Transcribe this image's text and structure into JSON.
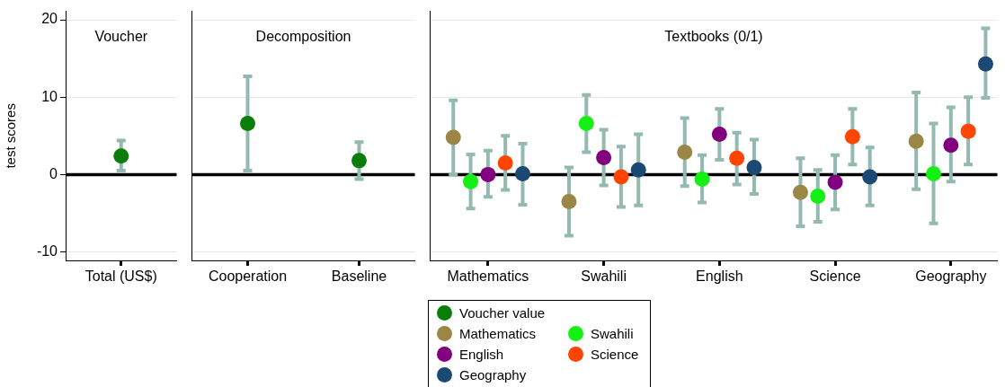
{
  "chart_data": [
    {
      "type": "scatter",
      "title": "Voucher",
      "ylabel": "test scores",
      "categories": [
        "Total (US$)"
      ],
      "series": [
        {
          "color": "#0a7d0a",
          "values": [
            2.4
          ],
          "errors": [
            [
              0.5,
              4.4
            ]
          ]
        }
      ],
      "ylim": [
        -11.1,
        21.1
      ],
      "yticks": [
        -10,
        0,
        10,
        20
      ],
      "grid": "y",
      "marker": "circle",
      "ref_lines": [
        {
          "axis": "y",
          "value": 0,
          "color": "#000000"
        }
      ]
    },
    {
      "type": "scatter",
      "title": "Decomposition",
      "categories": [
        "Cooperation",
        "Baseline"
      ],
      "series": [
        {
          "name": "Voucher value",
          "color": "#0a7d0a",
          "values": [
            6.6,
            1.8
          ],
          "errors": [
            [
              0.5,
              12.7
            ],
            [
              -0.6,
              4.2
            ]
          ]
        }
      ],
      "ylim": [
        -11.1,
        21.1
      ],
      "yticks": [
        -10,
        0,
        10,
        20
      ],
      "grid": "y",
      "marker": "circle",
      "legend": "bottom",
      "tick_labels": "x",
      "ref_lines": [
        {
          "axis": "y",
          "value": 0,
          "color": "#000000"
        }
      ]
    },
    {
      "type": "scatter",
      "title": "Textbooks (0/1)",
      "categories": [
        "Mathematics",
        "Swahili",
        "English",
        "Science",
        "Geography"
      ],
      "series": [
        {
          "name": "Mathematics",
          "color": "#9c8646",
          "values": [
            4.8,
            -3.5,
            2.9,
            -2.3,
            4.3
          ],
          "errors": [
            [
              0.0,
              9.6
            ],
            [
              -7.9,
              0.9
            ],
            [
              -1.5,
              7.3
            ],
            [
              -6.7,
              2.1
            ],
            [
              -1.9,
              10.6
            ]
          ]
        },
        {
          "name": "Swahili",
          "color": "#14f014",
          "values": [
            -0.9,
            6.6,
            -0.6,
            -2.8,
            0.1
          ],
          "errors": [
            [
              -4.4,
              2.6
            ],
            [
              2.9,
              10.3
            ],
            [
              -3.6,
              2.5
            ],
            [
              -6.1,
              0.6
            ],
            [
              -6.3,
              6.6
            ]
          ]
        },
        {
          "name": "English",
          "color": "#800080",
          "values": [
            0.0,
            2.2,
            5.2,
            -1.0,
            3.8
          ],
          "errors": [
            [
              -2.9,
              3.1
            ],
            [
              -1.4,
              5.8
            ],
            [
              1.9,
              8.5
            ],
            [
              -4.5,
              2.5
            ],
            [
              -0.9,
              8.7
            ]
          ]
        },
        {
          "name": "Science",
          "color": "#ff4500",
          "values": [
            1.5,
            -0.3,
            2.1,
            4.9,
            5.6
          ],
          "errors": [
            [
              -2.0,
              5.0
            ],
            [
              -4.2,
              3.6
            ],
            [
              -1.3,
              5.4
            ],
            [
              1.3,
              8.5
            ],
            [
              1.3,
              10.0
            ]
          ]
        },
        {
          "name": "Geography",
          "color": "#1a4a73",
          "values": [
            0.1,
            0.6,
            0.9,
            -0.3,
            14.3
          ],
          "errors": [
            [
              -3.9,
              4.0
            ],
            [
              -4.0,
              5.2
            ],
            [
              -2.5,
              4.5
            ],
            [
              -4.0,
              3.5
            ],
            [
              9.9,
              18.9
            ]
          ]
        }
      ],
      "ylim": [
        -11.1,
        21.1
      ],
      "yticks": [
        -10,
        0,
        10,
        20
      ],
      "grid": "y",
      "marker": "circle",
      "legend": "bottom",
      "tick_labels": "x",
      "ref_lines": [
        {
          "axis": "y",
          "value": 0,
          "color": "#000000"
        }
      ]
    }
  ]
}
